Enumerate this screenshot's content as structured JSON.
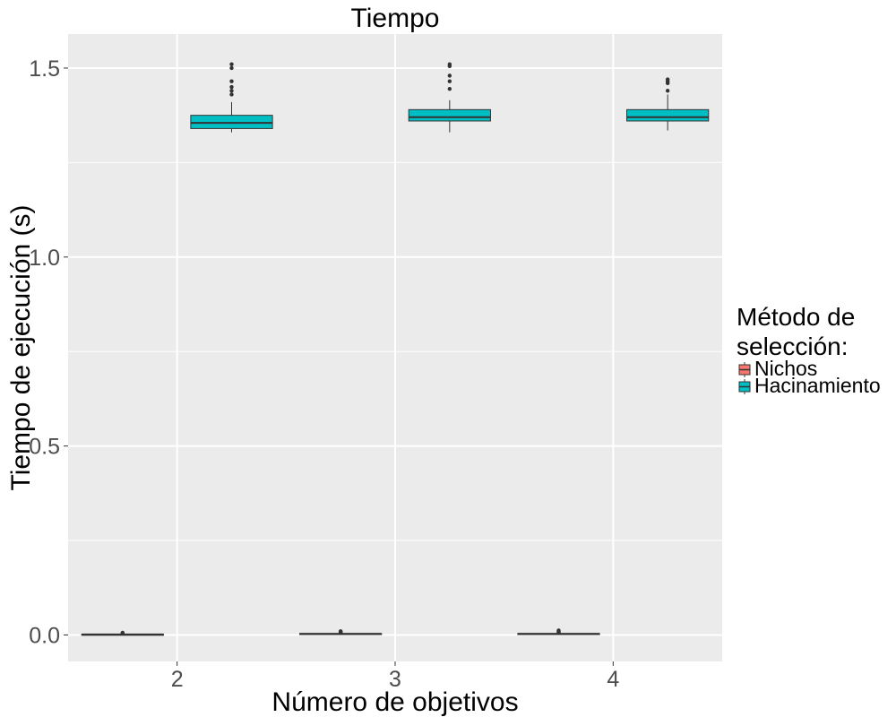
{
  "chart_data": {
    "type": "boxplot",
    "title": "Tiempo",
    "xlabel": "Número de objetivos",
    "ylabel": "Tiempo de ejecución (s)",
    "categories": [
      "2",
      "3",
      "4"
    ],
    "ylim": [
      -0.07,
      1.59
    ],
    "yticks": [
      0.0,
      0.5,
      1.0,
      1.5
    ],
    "ytick_labels": [
      "0.0",
      "0.5",
      "1.0",
      "1.5"
    ],
    "grid": true,
    "legend": {
      "title_lines": [
        "Método de",
        "selección:"
      ],
      "placement": "right"
    },
    "colors": {
      "panel": "#EBEBEB",
      "grid": "#FFFFFF",
      "Nichos": "#F8766D",
      "Hacinamiento": "#00BFC4",
      "line": "#333333"
    },
    "series": [
      {
        "name": "Nichos",
        "color": "#F8766D",
        "boxes": [
          {
            "category": "2",
            "lower_whisker": 0.0005,
            "q1": 0.001,
            "median": 0.0015,
            "q3": 0.002,
            "upper_whisker": 0.003,
            "outliers": [
              0.004,
              0.005,
              0.006
            ]
          },
          {
            "category": "3",
            "lower_whisker": 0.001,
            "q1": 0.002,
            "median": 0.003,
            "q3": 0.004,
            "upper_whisker": 0.006,
            "outliers": [
              0.007,
              0.008,
              0.009,
              0.01
            ]
          },
          {
            "category": "4",
            "lower_whisker": 0.001,
            "q1": 0.002,
            "median": 0.003,
            "q3": 0.004,
            "upper_whisker": 0.006,
            "outliers": [
              0.007,
              0.008,
              0.01,
              0.012
            ]
          }
        ]
      },
      {
        "name": "Hacinamiento",
        "color": "#00BFC4",
        "boxes": [
          {
            "category": "2",
            "lower_whisker": 1.33,
            "q1": 1.34,
            "median": 1.355,
            "q3": 1.375,
            "upper_whisker": 1.41,
            "outliers": [
              1.43,
              1.44,
              1.45,
              1.465,
              1.5,
              1.51
            ]
          },
          {
            "category": "3",
            "lower_whisker": 1.33,
            "q1": 1.36,
            "median": 1.37,
            "q3": 1.39,
            "upper_whisker": 1.415,
            "outliers": [
              1.445,
              1.465,
              1.48,
              1.505,
              1.51
            ]
          },
          {
            "category": "4",
            "lower_whisker": 1.335,
            "q1": 1.36,
            "median": 1.37,
            "q3": 1.39,
            "upper_whisker": 1.43,
            "outliers": [
              1.44,
              1.46,
              1.465,
              1.47
            ]
          }
        ]
      }
    ]
  }
}
